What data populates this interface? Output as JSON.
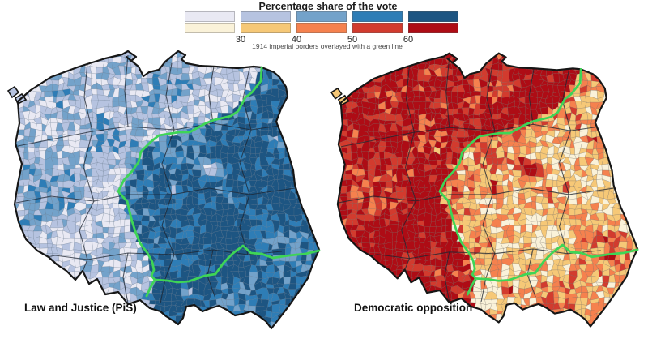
{
  "legend": {
    "title": "Percentage share of the vote",
    "tick_labels": [
      "30",
      "40",
      "50",
      "60"
    ],
    "note": "1914 imperial borders overlayed with a green line",
    "pis_palette": [
      "#e9e9f3",
      "#b6c3e0",
      "#73a2ca",
      "#2e7db6",
      "#1d5582"
    ],
    "opposition_palette": [
      "#faf2d9",
      "#f6c877",
      "#f5814e",
      "#d23b2e",
      "#ae0c15"
    ]
  },
  "overlay": {
    "label": "1914 imperial borders",
    "color": "#3ed556"
  },
  "maps": [
    {
      "id": "pis",
      "label": "Law and Justice (PiS)"
    },
    {
      "id": "opposition",
      "label": "Democratic opposition"
    }
  ],
  "chart_data": {
    "type": "choropleth",
    "title": "Percentage share of the vote",
    "bins": [
      "<30",
      "30-40",
      "40-50",
      "50-60",
      ">60"
    ],
    "bin_edges": [
      30,
      40,
      50,
      60
    ],
    "series": [
      {
        "name": "Law and Justice (PiS)",
        "palette": [
          "#e9e9f3",
          "#b6c3e0",
          "#73a2ca",
          "#2e7db6",
          "#1d5582"
        ],
        "pattern": "vote share mostly above 50% east and south of the 1914 imperial border (former Russian and Austrian partitions), mostly below 40% in the west (former Prussian partition) and in large cities"
      },
      {
        "name": "Democratic opposition",
        "palette": [
          "#faf2d9",
          "#f6c877",
          "#f5814e",
          "#d23b2e",
          "#ae0c15"
        ],
        "pattern": "vote share mostly above 50% west of the 1914 imperial border and in large cities, mostly below 40% in the east and south-east"
      }
    ],
    "annotations": [
      "1914 imperial borders overlayed with a green line"
    ]
  }
}
